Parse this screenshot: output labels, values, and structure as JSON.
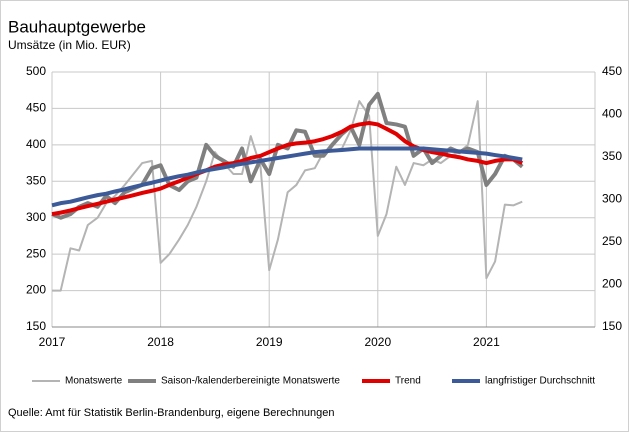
{
  "chart_data": {
    "type": "line",
    "title": "Bauhauptgewerbe",
    "subtitle": "Umsätze (in Mio. EUR)",
    "source": "Quelle: Amt für Statistik Berlin-Brandenburg, eigene Berechnungen",
    "x": [
      2017.0,
      2017.08,
      2017.17,
      2017.25,
      2017.33,
      2017.42,
      2017.5,
      2017.58,
      2017.67,
      2017.75,
      2017.83,
      2017.92,
      2018.0,
      2018.08,
      2018.17,
      2018.25,
      2018.33,
      2018.42,
      2018.5,
      2018.58,
      2018.67,
      2018.75,
      2018.83,
      2018.92,
      2019.0,
      2019.08,
      2019.17,
      2019.25,
      2019.33,
      2019.42,
      2019.5,
      2019.58,
      2019.67,
      2019.75,
      2019.83,
      2019.92,
      2020.0,
      2020.08,
      2020.17,
      2020.25,
      2020.33,
      2020.42,
      2020.5,
      2020.58,
      2020.67,
      2020.75,
      2020.83,
      2020.92,
      2021.0,
      2021.08,
      2021.17,
      2021.25,
      2021.33
    ],
    "xlim": [
      2017,
      2022
    ],
    "xticks": [
      2017,
      2018,
      2019,
      2020,
      2021
    ],
    "ylim": [
      150,
      500
    ],
    "yticks": [
      150,
      200,
      250,
      300,
      350,
      400,
      450,
      500
    ],
    "y2lim": [
      150,
      450
    ],
    "y2ticks": [
      150,
      200,
      250,
      300,
      350,
      400,
      450
    ],
    "grid": true,
    "legend": "bottom",
    "series": [
      {
        "name": "Monatswerte",
        "color": "#b4b4b4",
        "width": 2,
        "values": [
          200,
          200,
          258,
          255,
          290,
          300,
          320,
          330,
          345,
          360,
          375,
          378,
          238,
          250,
          270,
          290,
          315,
          350,
          390,
          375,
          360,
          360,
          412,
          370,
          228,
          270,
          335,
          345,
          365,
          368,
          390,
          392,
          395,
          420,
          460,
          440,
          275,
          305,
          370,
          345,
          375,
          372,
          380,
          375,
          385,
          390,
          400,
          460,
          217,
          240,
          318,
          317,
          322
        ]
      },
      {
        "name": "Saison-/kalenderbereinigte Monatswerte",
        "color": "#808080",
        "width": 4,
        "values": [
          305,
          300,
          305,
          315,
          320,
          315,
          330,
          320,
          335,
          340,
          345,
          368,
          372,
          345,
          338,
          350,
          355,
          400,
          385,
          378,
          370,
          395,
          350,
          380,
          360,
          400,
          395,
          420,
          418,
          385,
          385,
          400,
          415,
          425,
          400,
          455,
          470,
          430,
          428,
          425,
          385,
          395,
          375,
          385,
          395,
          390,
          395,
          390,
          345,
          360,
          385,
          380,
          370
        ]
      },
      {
        "name": "Trend",
        "color": "#e00000",
        "width": 4,
        "values": [
          305,
          307,
          310,
          313,
          316,
          319,
          322,
          325,
          328,
          331,
          334,
          337,
          340,
          345,
          350,
          355,
          360,
          365,
          370,
          373,
          375,
          378,
          382,
          385,
          390,
          395,
          400,
          402,
          403,
          405,
          408,
          412,
          418,
          425,
          428,
          430,
          428,
          422,
          415,
          405,
          398,
          393,
          390,
          388,
          385,
          383,
          380,
          378,
          375,
          378,
          380,
          380,
          375
        ]
      },
      {
        "name": "langfristiger Durchschnitt",
        "color": "#3d5a98",
        "width": 4,
        "values": [
          317,
          320,
          322,
          325,
          328,
          331,
          333,
          336,
          339,
          342,
          345,
          348,
          351,
          354,
          357,
          359,
          362,
          365,
          367,
          369,
          372,
          374,
          376,
          378,
          380,
          382,
          384,
          386,
          388,
          390,
          391,
          392,
          393,
          394,
          395,
          395,
          395,
          395,
          395,
          395,
          395,
          395,
          394,
          393,
          392,
          391,
          390,
          389,
          388,
          386,
          384,
          382,
          380
        ]
      }
    ]
  }
}
